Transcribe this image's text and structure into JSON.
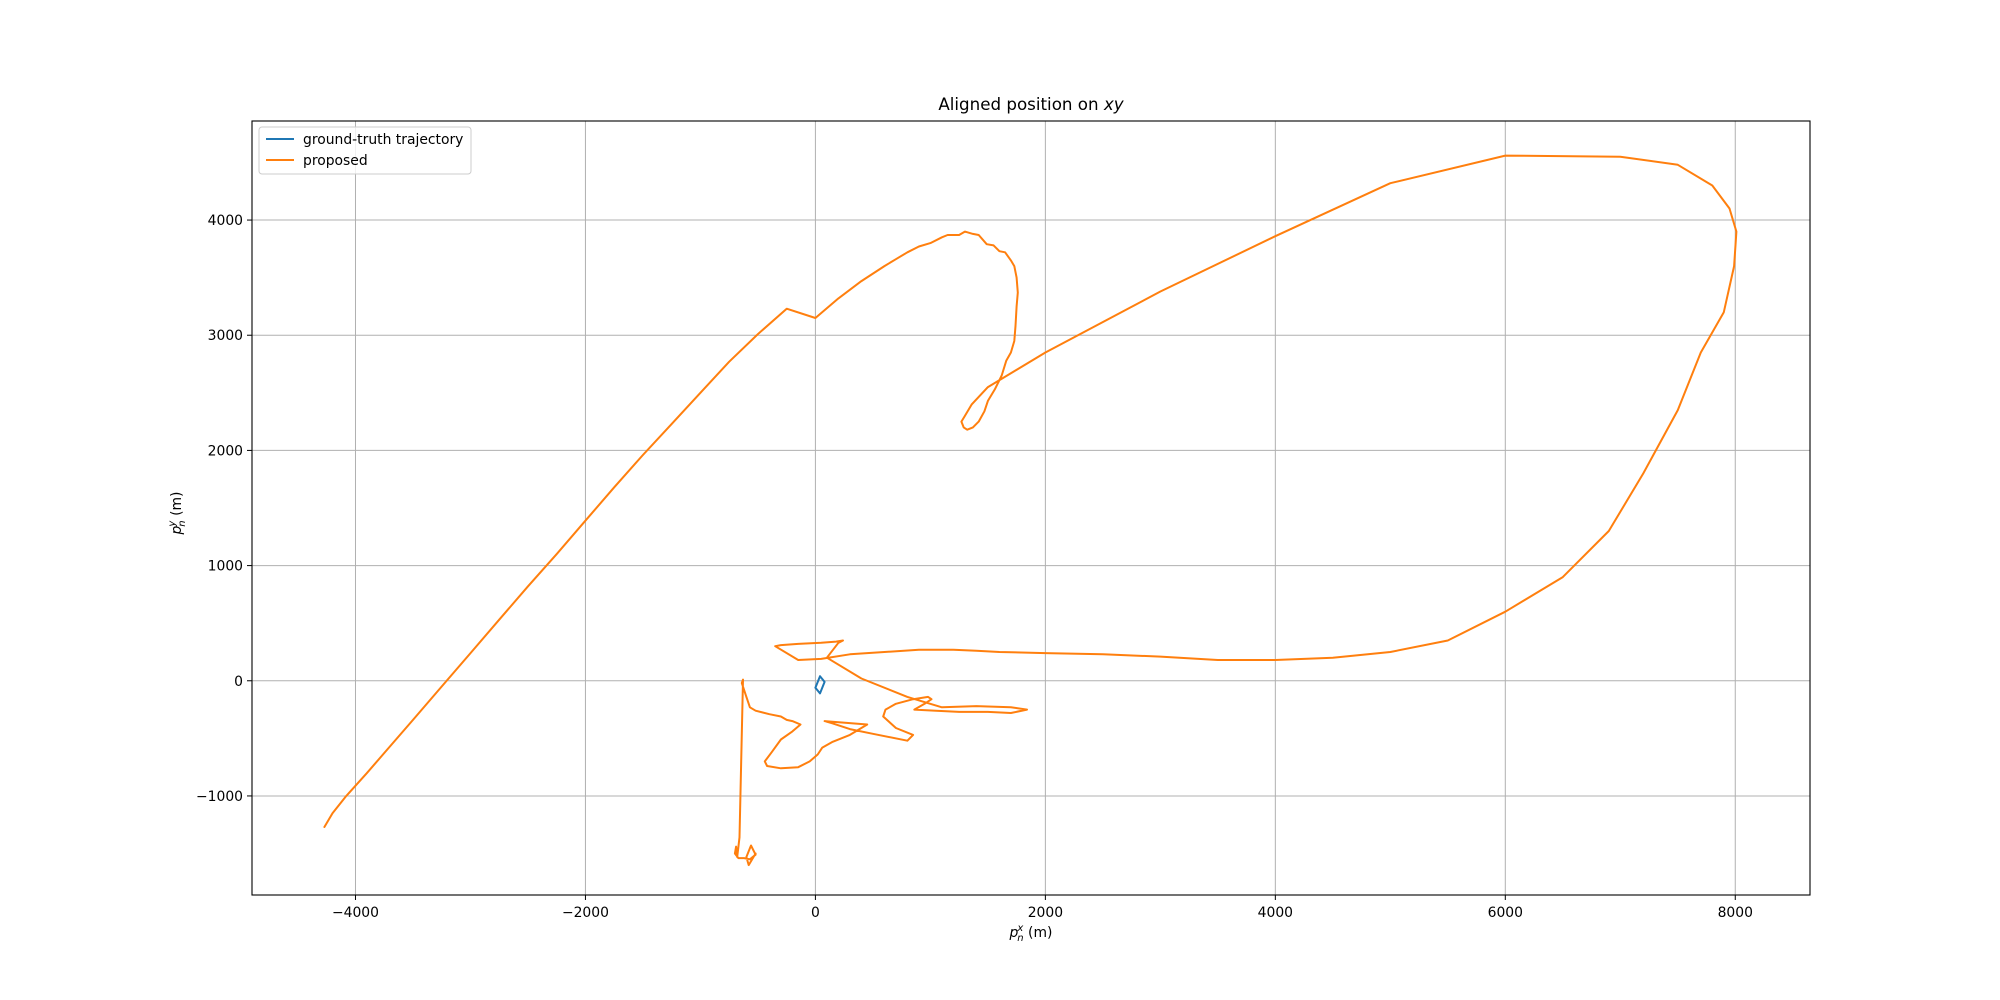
{
  "chart_data": {
    "type": "line",
    "title": "Aligned position on xy",
    "title_prefix": "Aligned position on ",
    "title_math": "xy",
    "xlabel": "p_n^x (m)",
    "xlabel_symbol": "p",
    "xlabel_sup": "x",
    "xlabel_sub": "n",
    "xlabel_unit": " (m)",
    "ylabel": "p_n^y (m)",
    "ylabel_symbol": "p",
    "ylabel_sup": "y",
    "ylabel_sub": "n",
    "ylabel_unit": " (m)",
    "xlim": [
      -4900,
      8650
    ],
    "ylim": [
      -1860,
      4860
    ],
    "xticks": [
      -4000,
      -2000,
      0,
      2000,
      4000,
      6000,
      8000
    ],
    "yticks": [
      -1000,
      0,
      1000,
      2000,
      3000,
      4000
    ],
    "xtick_labels": [
      "−4000",
      "−2000",
      "0",
      "2000",
      "4000",
      "6000",
      "8000"
    ],
    "ytick_labels": [
      "−1000",
      "0",
      "1000",
      "2000",
      "3000",
      "4000"
    ],
    "grid": true,
    "legend_position": "upper-left",
    "series": [
      {
        "name": "ground-truth trajectory",
        "color": "#1f77b4",
        "x": [
          0,
          40,
          80,
          40,
          0
        ],
        "y": [
          -60,
          -110,
          -10,
          40,
          -60
        ]
      },
      {
        "name": "proposed",
        "color": "#ff7f0e",
        "x": [
          -4270,
          -4200,
          -4080,
          -3900,
          -3700,
          -3500,
          -3250,
          -3000,
          -2750,
          -2500,
          -2250,
          -2000,
          -1750,
          -1500,
          -1250,
          -1000,
          -750,
          -500,
          -250,
          0,
          200,
          400,
          600,
          700,
          800,
          900,
          1000,
          1100,
          1150,
          1250,
          1300,
          1370,
          1420,
          1490,
          1550,
          1600,
          1650,
          1700,
          1730,
          1750,
          1760,
          1750,
          1740,
          1730,
          1700,
          1660,
          1620,
          1560,
          1500,
          1470,
          1420,
          1370,
          1320,
          1290,
          1270,
          1300,
          1360,
          1500,
          2000,
          3000,
          4000,
          5000,
          6000,
          7000,
          7500,
          7800,
          7950,
          8010,
          7990,
          7900,
          7700,
          7500,
          7200,
          6900,
          6500,
          6000,
          5500,
          5000,
          4500,
          4000,
          3500,
          3000,
          2500,
          2000,
          1600,
          1400,
          1200,
          900,
          600,
          300,
          50,
          -150,
          -350,
          -300,
          -150,
          50,
          180,
          240,
          200,
          100,
          400,
          800,
          1100,
          1400,
          1700,
          1840,
          1700,
          1500,
          1250,
          1050,
          860,
          950,
          1010,
          980,
          850,
          700,
          610,
          590,
          700,
          850,
          800,
          500,
          300,
          150,
          80,
          450,
          300,
          150,
          60,
          20,
          -50,
          -150,
          -300,
          -420,
          -440,
          -380,
          -300,
          -200,
          -130,
          -200,
          -250,
          -300,
          -400,
          -520,
          -570,
          -600,
          -640,
          -630,
          -660,
          -680,
          -690,
          -700,
          -670,
          -620,
          -570,
          -520,
          -560,
          -600,
          -580,
          -520
        ],
        "y": [
          -1270,
          -1150,
          -1000,
          -800,
          -570,
          -340,
          -50,
          240,
          530,
          820,
          1100,
          1390,
          1680,
          1960,
          2230,
          2500,
          2770,
          3010,
          3230,
          3150,
          3320,
          3470,
          3600,
          3660,
          3720,
          3770,
          3800,
          3850,
          3870,
          3870,
          3900,
          3880,
          3870,
          3790,
          3780,
          3730,
          3720,
          3650,
          3600,
          3500,
          3370,
          3250,
          3080,
          2950,
          2850,
          2780,
          2650,
          2530,
          2430,
          2340,
          2250,
          2200,
          2180,
          2200,
          2250,
          2300,
          2400,
          2550,
          2850,
          3380,
          3860,
          4320,
          4560,
          4550,
          4480,
          4300,
          4100,
          3900,
          3600,
          3200,
          2850,
          2350,
          1800,
          1300,
          900,
          600,
          350,
          250,
          200,
          180,
          180,
          210,
          230,
          240,
          250,
          260,
          270,
          270,
          250,
          230,
          190,
          180,
          300,
          310,
          320,
          330,
          340,
          350,
          330,
          200,
          20,
          -140,
          -230,
          -220,
          -230,
          -250,
          -280,
          -270,
          -270,
          -260,
          -250,
          -200,
          -160,
          -140,
          -160,
          -200,
          -250,
          -310,
          -410,
          -470,
          -520,
          -460,
          -420,
          -370,
          -350,
          -380,
          -470,
          -530,
          -580,
          -640,
          -700,
          -750,
          -760,
          -740,
          -700,
          -620,
          -510,
          -440,
          -380,
          -350,
          -340,
          -310,
          -290,
          -260,
          -230,
          -140,
          -20,
          10,
          -1360,
          -1530,
          -1440,
          -1500,
          -1540,
          -1540,
          -1550,
          -1510,
          -1430,
          -1530,
          -1600,
          -1500
        ]
      }
    ]
  }
}
